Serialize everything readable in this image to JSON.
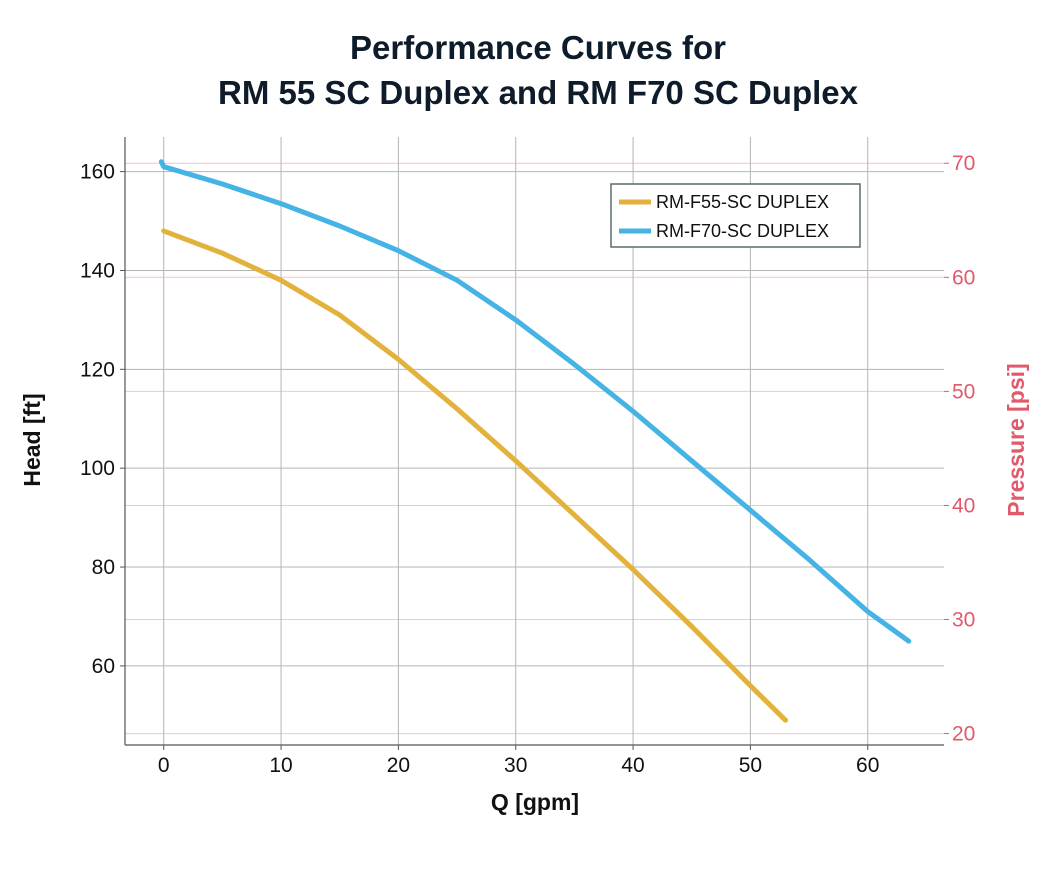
{
  "chart_data": {
    "type": "line",
    "title": [
      "Performance Curves for",
      "RM 55 SC Duplex and RM F70 SC Duplex"
    ],
    "xlabel": "Q [gpm]",
    "ylabel": "Head [ft]",
    "y2label": "Pressure [psi]",
    "xlim": [
      -3.3,
      66.5
    ],
    "ylim": [
      44,
      167
    ],
    "y2lim": [
      19.0,
      72.3
    ],
    "xticks": [
      0,
      10,
      20,
      30,
      40,
      50,
      60
    ],
    "yticks": [
      60,
      80,
      100,
      120,
      140,
      160
    ],
    "y2ticks": [
      20,
      30,
      40,
      50,
      60,
      70
    ],
    "grid": true,
    "legend_position": "top-right",
    "colors": {
      "series1": "#e3b23c",
      "series2": "#45b3e4",
      "y2_axis": "#e05a6c",
      "grid": "#b4b4b4",
      "grid_secondary": "#f1c6cd",
      "text": "#111111",
      "title": "#0d1b2a"
    },
    "series": [
      {
        "name": "RM-F55-SC DUPLEX",
        "x": [
          0,
          5,
          10,
          15,
          20,
          25,
          30,
          35,
          40,
          45,
          50,
          53
        ],
        "y": [
          148,
          143.5,
          138,
          131,
          122,
          112,
          101.5,
          90.5,
          79.5,
          68,
          56,
          49
        ]
      },
      {
        "name": "RM-F70-SC DUPLEX",
        "x": [
          -0.2,
          0,
          5,
          10,
          15,
          20,
          25,
          30,
          35,
          40,
          45,
          50,
          55,
          60,
          63.5
        ],
        "y": [
          162,
          161,
          157.5,
          153.5,
          149,
          144,
          138,
          130,
          121,
          111.5,
          101.5,
          91.5,
          81.5,
          71,
          65
        ]
      }
    ]
  }
}
